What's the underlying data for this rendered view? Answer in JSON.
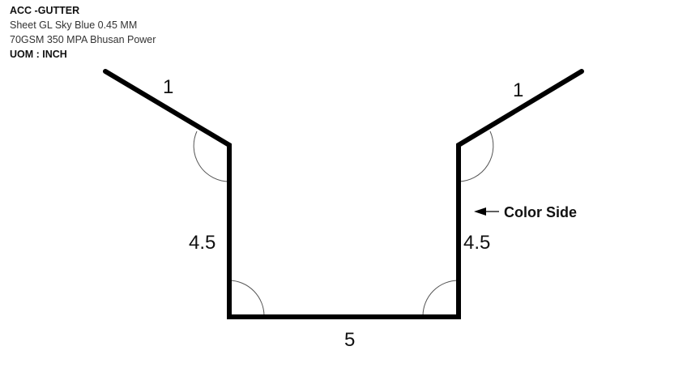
{
  "header": {
    "title": "ACC -GUTTER",
    "material_line": "Sheet GL Sky Blue 0.45 MM",
    "spec_line": "70GSM 350 MPA Bhusan Power",
    "uom": "UOM : INCH"
  },
  "diagram": {
    "dimensions": {
      "left_flange": "1",
      "right_flange": "1",
      "left_wall": "4.5",
      "right_wall": "4.5",
      "base": "5"
    },
    "annotation": {
      "color_side": "Color Side"
    },
    "colors": {
      "profile": "#000000",
      "arc": "#555555"
    }
  }
}
